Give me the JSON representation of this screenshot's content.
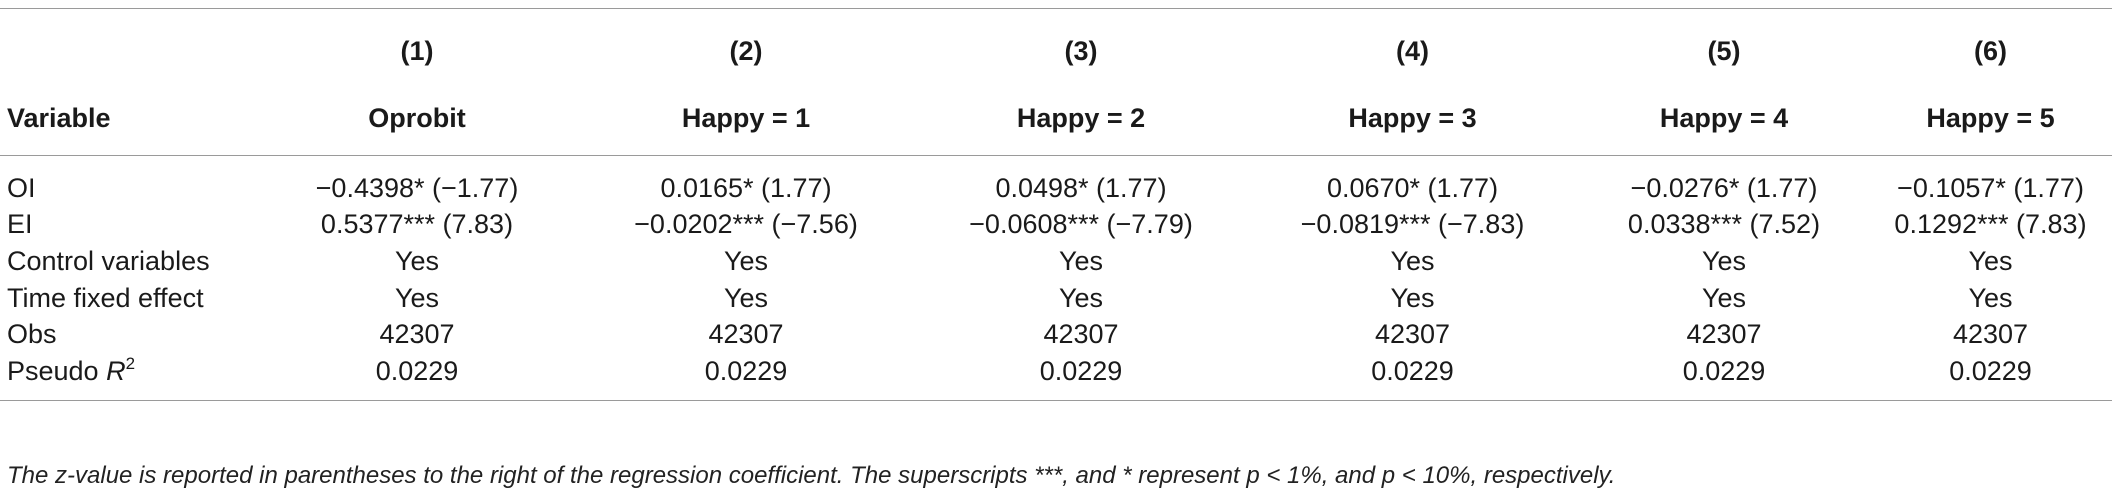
{
  "table": {
    "column_numbers": [
      "(1)",
      "(2)",
      "(3)",
      "(4)",
      "(5)",
      "(6)"
    ],
    "variable_header": "Variable",
    "column_headers": [
      "Oprobit",
      "Happy = 1",
      "Happy = 2",
      "Happy = 3",
      "Happy = 4",
      "Happy = 5"
    ],
    "rows": [
      {
        "label": "OI",
        "cells": [
          "−0.4398* (−1.77)",
          "0.0165* (1.77)",
          "0.0498* (1.77)",
          "0.0670* (1.77)",
          "−0.0276* (1.77)",
          "−0.1057* (1.77)"
        ]
      },
      {
        "label": "EI",
        "cells": [
          "0.5377*** (7.83)",
          "−0.0202*** (−7.56)",
          "−0.0608*** (−7.79)",
          "−0.0819*** (−7.83)",
          "0.0338*** (7.52)",
          "0.1292*** (7.83)"
        ]
      },
      {
        "label": "Control variables",
        "cells": [
          "Yes",
          "Yes",
          "Yes",
          "Yes",
          "Yes",
          "Yes"
        ]
      },
      {
        "label": "Time fixed effect",
        "cells": [
          "Yes",
          "Yes",
          "Yes",
          "Yes",
          "Yes",
          "Yes"
        ]
      },
      {
        "label": "Obs",
        "cells": [
          "42307",
          "42307",
          "42307",
          "42307",
          "42307",
          "42307"
        ]
      },
      {
        "label": "Pseudo R",
        "label_sup": "2",
        "cells": [
          "0.0229",
          "0.0229",
          "0.0229",
          "0.0229",
          "0.0229",
          "0.0229"
        ]
      }
    ]
  },
  "footnote": "The z-value is reported in parentheses to the right of the regression coefficient. The superscripts ***, and * represent p < 1%, and p < 10%, respectively."
}
